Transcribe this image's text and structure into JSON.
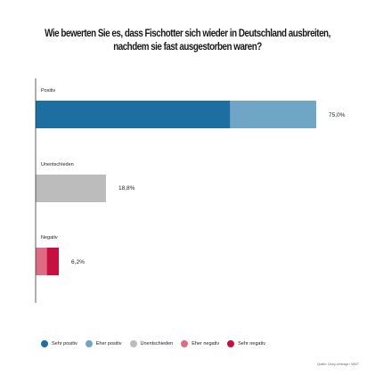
{
  "title_line1": "Wie bewerten Sie es, dass Fischotter sich wieder in Deutschland ausbreiten,",
  "title_line2": "nachdem sie fast ausgestorben waren?",
  "source": "Quelle: Civey-Umfrage / WWT",
  "colors": {
    "sehr_positiv": "#1c6fa0",
    "eher_positiv": "#6fa6c6",
    "unentschieden": "#bcbcbc",
    "eher_negativ": "#de6b84",
    "sehr_negativ": "#c8103e"
  },
  "legend": [
    {
      "label": "Sehr positiv",
      "color": "#1c6fa0"
    },
    {
      "label": "Eher positiv",
      "color": "#6fa6c6"
    },
    {
      "label": "Unentschieden",
      "color": "#bcbcbc"
    },
    {
      "label": "Eher negativ",
      "color": "#de6b84"
    },
    {
      "label": "Sehr negativ",
      "color": "#c8103e"
    }
  ],
  "chart_data": {
    "type": "bar",
    "orientation": "horizontal",
    "stacked": true,
    "xlim": [
      0,
      100
    ],
    "categories": [
      "Positiv",
      "Unentschieden",
      "Negativ"
    ],
    "totals": [
      "75,0%",
      "18,8%",
      "6,2%"
    ],
    "series": [
      {
        "name": "Sehr positiv",
        "values": [
          52.0,
          0,
          0
        ]
      },
      {
        "name": "Eher positiv",
        "values": [
          23.0,
          0,
          0
        ]
      },
      {
        "name": "Unentschieden",
        "values": [
          0,
          18.8,
          0
        ]
      },
      {
        "name": "Eher negativ",
        "values": [
          0,
          0,
          3.0
        ]
      },
      {
        "name": "Sehr negativ",
        "values": [
          0,
          0,
          3.2
        ]
      }
    ]
  }
}
